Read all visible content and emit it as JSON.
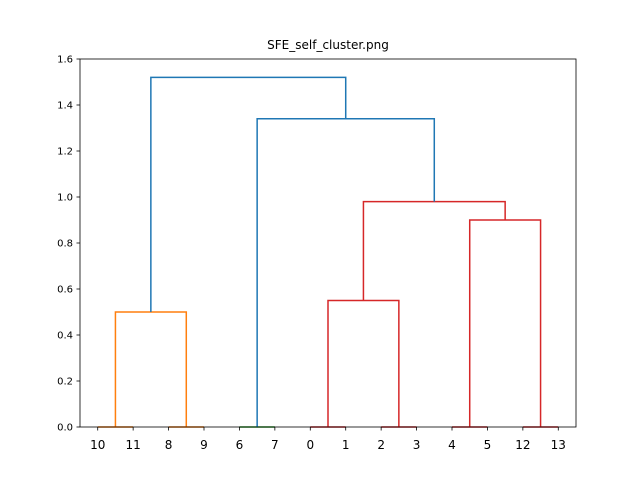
{
  "chart_data": {
    "type": "dendrogram",
    "title": "SFE_self_cluster.png",
    "xlabel": "",
    "ylabel": "",
    "ylim": [
      0,
      1.6
    ],
    "y_ticks": [
      "0.0",
      "0.2",
      "0.4",
      "0.6",
      "0.8",
      "1.0",
      "1.2",
      "1.4",
      "1.6"
    ],
    "leaf_labels": [
      "10",
      "11",
      "8",
      "9",
      "6",
      "7",
      "0",
      "1",
      "2",
      "3",
      "4",
      "5",
      "12",
      "13"
    ],
    "colors": {
      "orange": "#ff7f0e",
      "green": "#2ca02c",
      "red": "#d62728",
      "blue": "#1f77b4"
    },
    "merges": [
      {
        "left_leaf_index": 0,
        "right_leaf_index": 1,
        "height": 0.0,
        "color": "orange"
      },
      {
        "left_leaf_index": 2,
        "right_leaf_index": 3,
        "height": 0.0,
        "color": "orange"
      },
      {
        "left_leaf_index": 4,
        "right_leaf_index": 5,
        "height": 0.0,
        "color": "green"
      },
      {
        "left_leaf_index": 6,
        "right_leaf_index": 7,
        "height": 0.0,
        "color": "red"
      },
      {
        "left_leaf_index": 8,
        "right_leaf_index": 9,
        "height": 0.0,
        "color": "red"
      },
      {
        "left_leaf_index": 10,
        "right_leaf_index": 11,
        "height": 0.0,
        "color": "red"
      },
      {
        "left_leaf_index": 12,
        "right_leaf_index": 13,
        "height": 0.0,
        "color": "red"
      },
      {
        "left_cluster": [
          0,
          1
        ],
        "right_cluster": [
          2,
          3
        ],
        "height": 0.5,
        "color": "orange"
      },
      {
        "left_cluster": [
          6,
          7
        ],
        "right_cluster": [
          8,
          9
        ],
        "height": 0.55,
        "color": "red"
      },
      {
        "left_cluster": [
          10,
          11
        ],
        "right_cluster": [
          12,
          13
        ],
        "height": 0.9,
        "color": "red"
      },
      {
        "left_cluster": [
          6,
          7,
          8,
          9
        ],
        "right_cluster": [
          10,
          11,
          12,
          13
        ],
        "height": 0.98,
        "color": "red"
      },
      {
        "left_cluster": [
          4,
          5
        ],
        "right_cluster": [
          6,
          7,
          8,
          9,
          10,
          11,
          12,
          13
        ],
        "height": 1.34,
        "color": "blue"
      },
      {
        "left_cluster": [
          0,
          1,
          2,
          3
        ],
        "right_cluster": [
          4,
          5,
          6,
          7,
          8,
          9,
          10,
          11,
          12,
          13
        ],
        "height": 1.52,
        "color": "blue"
      }
    ]
  }
}
